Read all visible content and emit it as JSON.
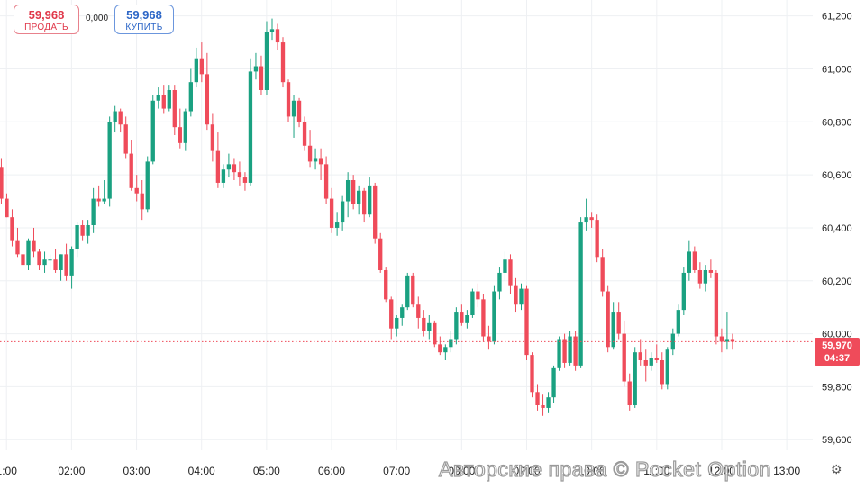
{
  "trade": {
    "sell": {
      "price": "59,968",
      "label": "ПРОДАТЬ"
    },
    "spread": "0,000",
    "buy": {
      "price": "59,968",
      "label": "КУПИТЬ"
    }
  },
  "current": {
    "price": "59,970",
    "timer": "04:37",
    "value": 59970
  },
  "watermark": "Авторские права © Pocket Option",
  "colors": {
    "up": "#1aa181",
    "down": "#ef4b5a",
    "grid": "#eef0f3",
    "price_line": "#ef4b5a"
  },
  "icons": {
    "settings": "gear-icon"
  },
  "chart_data": {
    "type": "candlestick",
    "y_ticks": [
      {
        "value": 61200,
        "label": "61,200"
      },
      {
        "value": 61000,
        "label": "61,000"
      },
      {
        "value": 60800,
        "label": "60,800"
      },
      {
        "value": 60600,
        "label": "60,600"
      },
      {
        "value": 60400,
        "label": "60,400"
      },
      {
        "value": 60200,
        "label": "60,200"
      },
      {
        "value": 60000,
        "label": "60,000"
      },
      {
        "value": 59800,
        "label": "59,800"
      },
      {
        "value": 59600,
        "label": "59,600"
      }
    ],
    "x_ticks": [
      {
        "time": 1.0,
        "label": "1:00"
      },
      {
        "time": 2.0,
        "label": "02:00"
      },
      {
        "time": 3.0,
        "label": "03:00"
      },
      {
        "time": 4.0,
        "label": "04:00"
      },
      {
        "time": 5.0,
        "label": "05:00"
      },
      {
        "time": 6.0,
        "label": "06:00"
      },
      {
        "time": 7.0,
        "label": "07:00"
      },
      {
        "time": 8.0,
        "label": "08:00"
      },
      {
        "time": 9.0,
        "label": "09:00"
      },
      {
        "time": 10.0,
        "label": "10:00"
      },
      {
        "time": 11.0,
        "label": "11:00"
      },
      {
        "time": 12.0,
        "label": "12:00"
      },
      {
        "time": 13.0,
        "label": "13:00"
      }
    ],
    "ylim": [
      59560,
      61260
    ],
    "xlim": [
      0.9,
      13.4
    ],
    "candle_interval_hours": 0.0833,
    "candles": [
      [
        60630,
        60660,
        60490,
        60510
      ],
      [
        60510,
        60530,
        60440,
        60440
      ],
      [
        60440,
        60470,
        60330,
        60350
      ],
      [
        60350,
        60400,
        60290,
        60300
      ],
      [
        60300,
        60360,
        60240,
        60260
      ],
      [
        60260,
        60360,
        60240,
        60350
      ],
      [
        60350,
        60400,
        60290,
        60310
      ],
      [
        60310,
        60320,
        60240,
        60260
      ],
      [
        60260,
        60310,
        60230,
        60280
      ],
      [
        60280,
        60300,
        60240,
        60280
      ],
      [
        60280,
        60320,
        60230,
        60240
      ],
      [
        60240,
        60300,
        60200,
        60300
      ],
      [
        60300,
        60340,
        60200,
        60220
      ],
      [
        60220,
        60330,
        60170,
        60320
      ],
      [
        60320,
        60420,
        60290,
        60410
      ],
      [
        60410,
        60430,
        60350,
        60370
      ],
      [
        60370,
        60430,
        60340,
        60410
      ],
      [
        60410,
        60550,
        60380,
        60510
      ],
      [
        60510,
        60560,
        60480,
        60500
      ],
      [
        60500,
        60580,
        60490,
        60510
      ],
      [
        60510,
        60820,
        60480,
        60800
      ],
      [
        60800,
        60860,
        60760,
        60840
      ],
      [
        60840,
        60850,
        60760,
        60790
      ],
      [
        60790,
        60820,
        60660,
        60680
      ],
      [
        60680,
        60730,
        60540,
        60550
      ],
      [
        60550,
        60600,
        60500,
        60530
      ],
      [
        60530,
        60580,
        60430,
        60470
      ],
      [
        60470,
        60670,
        60460,
        60650
      ],
      [
        60650,
        60900,
        60640,
        60880
      ],
      [
        60880,
        60930,
        60850,
        60900
      ],
      [
        60900,
        60940,
        60830,
        60850
      ],
      [
        60850,
        60940,
        60840,
        60920
      ],
      [
        60920,
        60940,
        60750,
        60780
      ],
      [
        60780,
        60850,
        60700,
        60720
      ],
      [
        60720,
        60850,
        60690,
        60840
      ],
      [
        60840,
        61000,
        60820,
        60950
      ],
      [
        60950,
        61080,
        60930,
        61040
      ],
      [
        61040,
        61100,
        60950,
        60980
      ],
      [
        60980,
        61060,
        60770,
        60790
      ],
      [
        60790,
        60830,
        60650,
        60690
      ],
      [
        60690,
        60760,
        60550,
        60570
      ],
      [
        60570,
        60640,
        60550,
        60620
      ],
      [
        60620,
        60680,
        60590,
        60640
      ],
      [
        60640,
        60660,
        60580,
        60610
      ],
      [
        60610,
        60650,
        60560,
        60590
      ],
      [
        60590,
        60610,
        60540,
        60570
      ],
      [
        60570,
        61040,
        60560,
        60990
      ],
      [
        60990,
        61060,
        60960,
        61010
      ],
      [
        61010,
        61050,
        60900,
        60920
      ],
      [
        60920,
        61180,
        60900,
        61140
      ],
      [
        61140,
        61190,
        61110,
        61150
      ],
      [
        61150,
        61170,
        61070,
        61100
      ],
      [
        61100,
        61120,
        60930,
        60950
      ],
      [
        60950,
        60960,
        60800,
        60820
      ],
      [
        60820,
        60900,
        60740,
        60880
      ],
      [
        60880,
        60890,
        60780,
        60800
      ],
      [
        60800,
        60820,
        60690,
        60710
      ],
      [
        60710,
        60770,
        60630,
        60650
      ],
      [
        60650,
        60700,
        60620,
        60660
      ],
      [
        60660,
        60700,
        60580,
        60640
      ],
      [
        60640,
        60670,
        60490,
        60510
      ],
      [
        60510,
        60550,
        60380,
        60400
      ],
      [
        60400,
        60460,
        60370,
        60420
      ],
      [
        60420,
        60520,
        60390,
        60500
      ],
      [
        60500,
        60610,
        60440,
        60580
      ],
      [
        60580,
        60600,
        60470,
        60490
      ],
      [
        60490,
        60560,
        60450,
        60540
      ],
      [
        60540,
        60550,
        60420,
        60450
      ],
      [
        60450,
        60590,
        60440,
        60560
      ],
      [
        60560,
        60570,
        60340,
        60360
      ],
      [
        60360,
        60380,
        60230,
        60240
      ],
      [
        60240,
        60250,
        60120,
        60130
      ],
      [
        60130,
        60140,
        59980,
        60020
      ],
      [
        60020,
        60070,
        59990,
        60060
      ],
      [
        60060,
        60110,
        60030,
        60100
      ],
      [
        60100,
        60230,
        60090,
        60220
      ],
      [
        60220,
        60230,
        60100,
        60110
      ],
      [
        60110,
        60140,
        60020,
        60060
      ],
      [
        60060,
        60090,
        59990,
        60010
      ],
      [
        60010,
        60070,
        59980,
        60040
      ],
      [
        60040,
        60050,
        59950,
        59960
      ],
      [
        59960,
        59990,
        59920,
        59930
      ],
      [
        59930,
        59960,
        59900,
        59950
      ],
      [
        59950,
        60010,
        59930,
        59980
      ],
      [
        59980,
        60100,
        59960,
        60080
      ],
      [
        60080,
        60110,
        60030,
        60040
      ],
      [
        60040,
        60090,
        60020,
        60070
      ],
      [
        60070,
        60170,
        60060,
        60160
      ],
      [
        60160,
        60190,
        60100,
        60130
      ],
      [
        60130,
        60150,
        59970,
        59990
      ],
      [
        59990,
        60030,
        59940,
        59970
      ],
      [
        59970,
        60180,
        59960,
        60160
      ],
      [
        60160,
        60250,
        60130,
        60230
      ],
      [
        60230,
        60310,
        60200,
        60280
      ],
      [
        60280,
        60300,
        60150,
        60180
      ],
      [
        60180,
        60210,
        60080,
        60110
      ],
      [
        60110,
        60190,
        60090,
        60170
      ],
      [
        60170,
        60180,
        59900,
        59920
      ],
      [
        59920,
        59930,
        59760,
        59780
      ],
      [
        59780,
        59810,
        59710,
        59730
      ],
      [
        59730,
        59770,
        59690,
        59720
      ],
      [
        59720,
        59780,
        59700,
        59760
      ],
      [
        59760,
        59880,
        59740,
        59870
      ],
      [
        59870,
        59990,
        59860,
        59980
      ],
      [
        59980,
        60000,
        59870,
        59890
      ],
      [
        59890,
        60010,
        59880,
        59990
      ],
      [
        59990,
        60010,
        59860,
        59880
      ],
      [
        59880,
        60440,
        59870,
        60420
      ],
      [
        60420,
        60510,
        60390,
        60440
      ],
      [
        60440,
        60460,
        60400,
        60430
      ],
      [
        60430,
        60450,
        60270,
        60290
      ],
      [
        60290,
        60320,
        60140,
        60160
      ],
      [
        60160,
        60180,
        59930,
        59950
      ],
      [
        59950,
        60120,
        59940,
        60080
      ],
      [
        60080,
        60120,
        59980,
        60000
      ],
      [
        60000,
        60050,
        59800,
        59820
      ],
      [
        59820,
        59850,
        59710,
        59730
      ],
      [
        59730,
        59950,
        59720,
        59930
      ],
      [
        59930,
        59980,
        59880,
        59900
      ],
      [
        59900,
        59940,
        59820,
        59880
      ],
      [
        59880,
        59930,
        59860,
        59910
      ],
      [
        59910,
        59960,
        59890,
        59900
      ],
      [
        59900,
        59930,
        59790,
        59810
      ],
      [
        59810,
        59950,
        59790,
        59940
      ],
      [
        59940,
        60020,
        59920,
        60000
      ],
      [
        60000,
        60110,
        59990,
        60090
      ],
      [
        60090,
        60250,
        60070,
        60230
      ],
      [
        60230,
        60350,
        60200,
        60310
      ],
      [
        60310,
        60330,
        60230,
        60240
      ],
      [
        60240,
        60270,
        60170,
        60190
      ],
      [
        60190,
        60260,
        60160,
        60240
      ],
      [
        60240,
        60280,
        60210,
        60230
      ],
      [
        60230,
        60240,
        59960,
        59990
      ],
      [
        59990,
        60020,
        59930,
        59970
      ],
      [
        59970,
        60080,
        59940,
        59980
      ],
      [
        59980,
        60000,
        59940,
        59970
      ]
    ]
  }
}
